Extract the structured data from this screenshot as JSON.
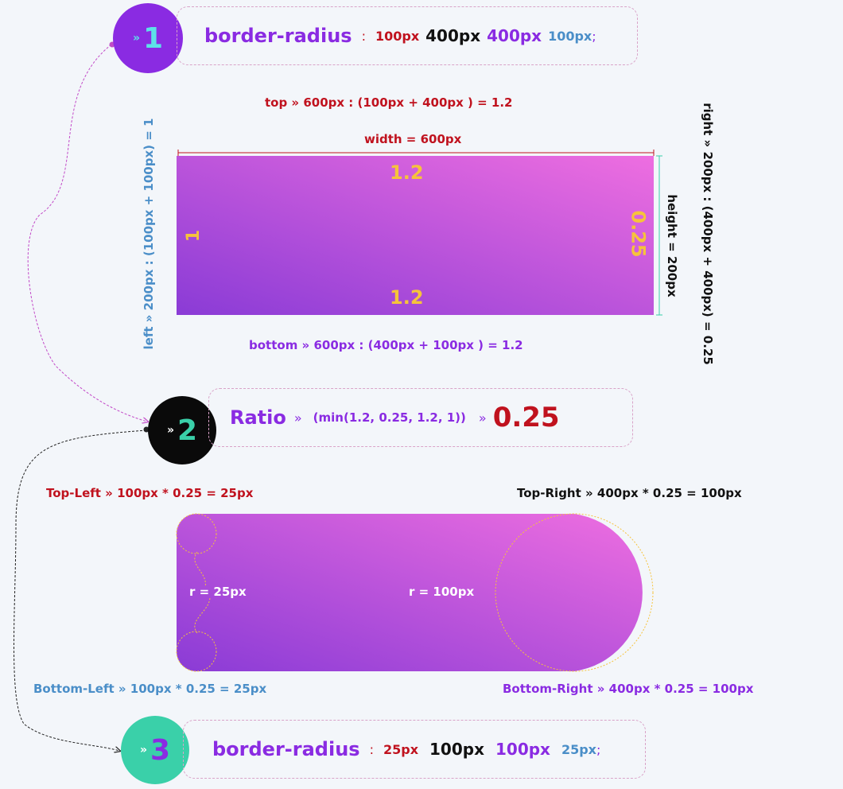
{
  "step1": {
    "chevron": "»",
    "number": "1",
    "prop": "border-radius",
    "colon": ":",
    "v1": "100px",
    "v2": "400px",
    "v3": "400px",
    "v4": "100px",
    "semi": ";"
  },
  "top_label": "top » 600px : (100px + 400px ) = 1.2",
  "width_label": "width = 600px",
  "left_label": "left » 200px : (100px + 100px) = 1",
  "right_label": "right » 200px : (400px + 400px) = 0.25",
  "height_label": "height = 200px",
  "box1": {
    "top": "1.2",
    "bottom": "1.2",
    "left": "1",
    "right": "0.25"
  },
  "bottom_label": "bottom » 600px : (400px + 100px ) = 1.2",
  "step2": {
    "chevron": "»",
    "number": "2",
    "ratio_word": "Ratio",
    "arrow": "»",
    "expr": "(min(1.2, 0.25, 1.2, 1))",
    "arrow2": "»",
    "result": "0.25"
  },
  "top_left_label": "Top-Left » 100px * 0.25 = 25px",
  "top_right_label": "Top-Right » 400px * 0.25 = 100px",
  "bottom_left_label": "Bottom-Left » 100px * 0.25 = 25px",
  "bottom_right_label": "Bottom-Right » 400px * 0.25 = 100px",
  "r_small": "r = 25px",
  "r_large": "r = 100px",
  "step3": {
    "chevron": "»",
    "number": "3",
    "prop": "border-radius",
    "colon": ":",
    "v1": "25px",
    "v2": "100px",
    "v3": "100px",
    "v4": "25px",
    "semi": ";"
  },
  "colors": {
    "purple": "#8a2be2",
    "red": "#c0121e",
    "blue": "#4a8ec8",
    "yellow": "#f6c33b",
    "teal": "#3ad0a9"
  }
}
